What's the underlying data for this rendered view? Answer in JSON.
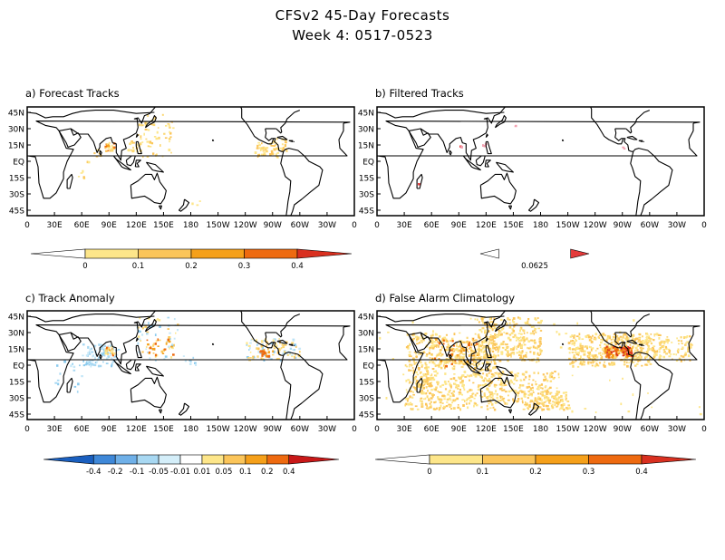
{
  "title": {
    "line1": "CFSv2 45-Day Forecasts",
    "line2": "Week 4: 0517-0523"
  },
  "lat_labels": [
    "45N",
    "30N",
    "15N",
    "EQ",
    "15S",
    "30S",
    "45S"
  ],
  "lon_labels": [
    "0",
    "30E",
    "60E",
    "90E",
    "120E",
    "150E",
    "180",
    "150W",
    "120W",
    "90W",
    "60W",
    "30W",
    "0"
  ],
  "panels": [
    {
      "id": "a",
      "title": "a) Forecast Tracks"
    },
    {
      "id": "b",
      "title": "b) Filtered Tracks"
    },
    {
      "id": "c",
      "title": "c) Track Anomaly"
    },
    {
      "id": "d",
      "title": "d) False Alarm Climatology"
    }
  ],
  "colorbars": {
    "a": {
      "labels": [
        "0",
        "0.1",
        "0.2",
        "0.3",
        "0.4"
      ],
      "colors": [
        "#ffffff",
        "#fde68a",
        "#fbc55a",
        "#f5a01a",
        "#ee6a10",
        "#d93020"
      ]
    },
    "b": {
      "labels": [
        "0.0625"
      ],
      "colors": [
        "#ffffff",
        "#e43a3a"
      ]
    },
    "c": {
      "labels": [
        "-0.4",
        "-0.2",
        "-0.1",
        "-0.05",
        "-0.01",
        "0.01",
        "0.05",
        "0.1",
        "0.2",
        "0.4"
      ],
      "colors": [
        "#1a5fbf",
        "#3f88d8",
        "#6fb0e8",
        "#a8d8f2",
        "#d4eef9",
        "#ffffff",
        "#fde68a",
        "#fbc55a",
        "#f5a01a",
        "#ee6a10",
        "#c81818"
      ]
    },
    "d": {
      "labels": [
        "0",
        "0.1",
        "0.2",
        "0.3",
        "0.4"
      ],
      "colors": [
        "#ffffff",
        "#fde68a",
        "#fbc55a",
        "#f5a01a",
        "#ee6a10",
        "#d93020"
      ]
    }
  }
}
